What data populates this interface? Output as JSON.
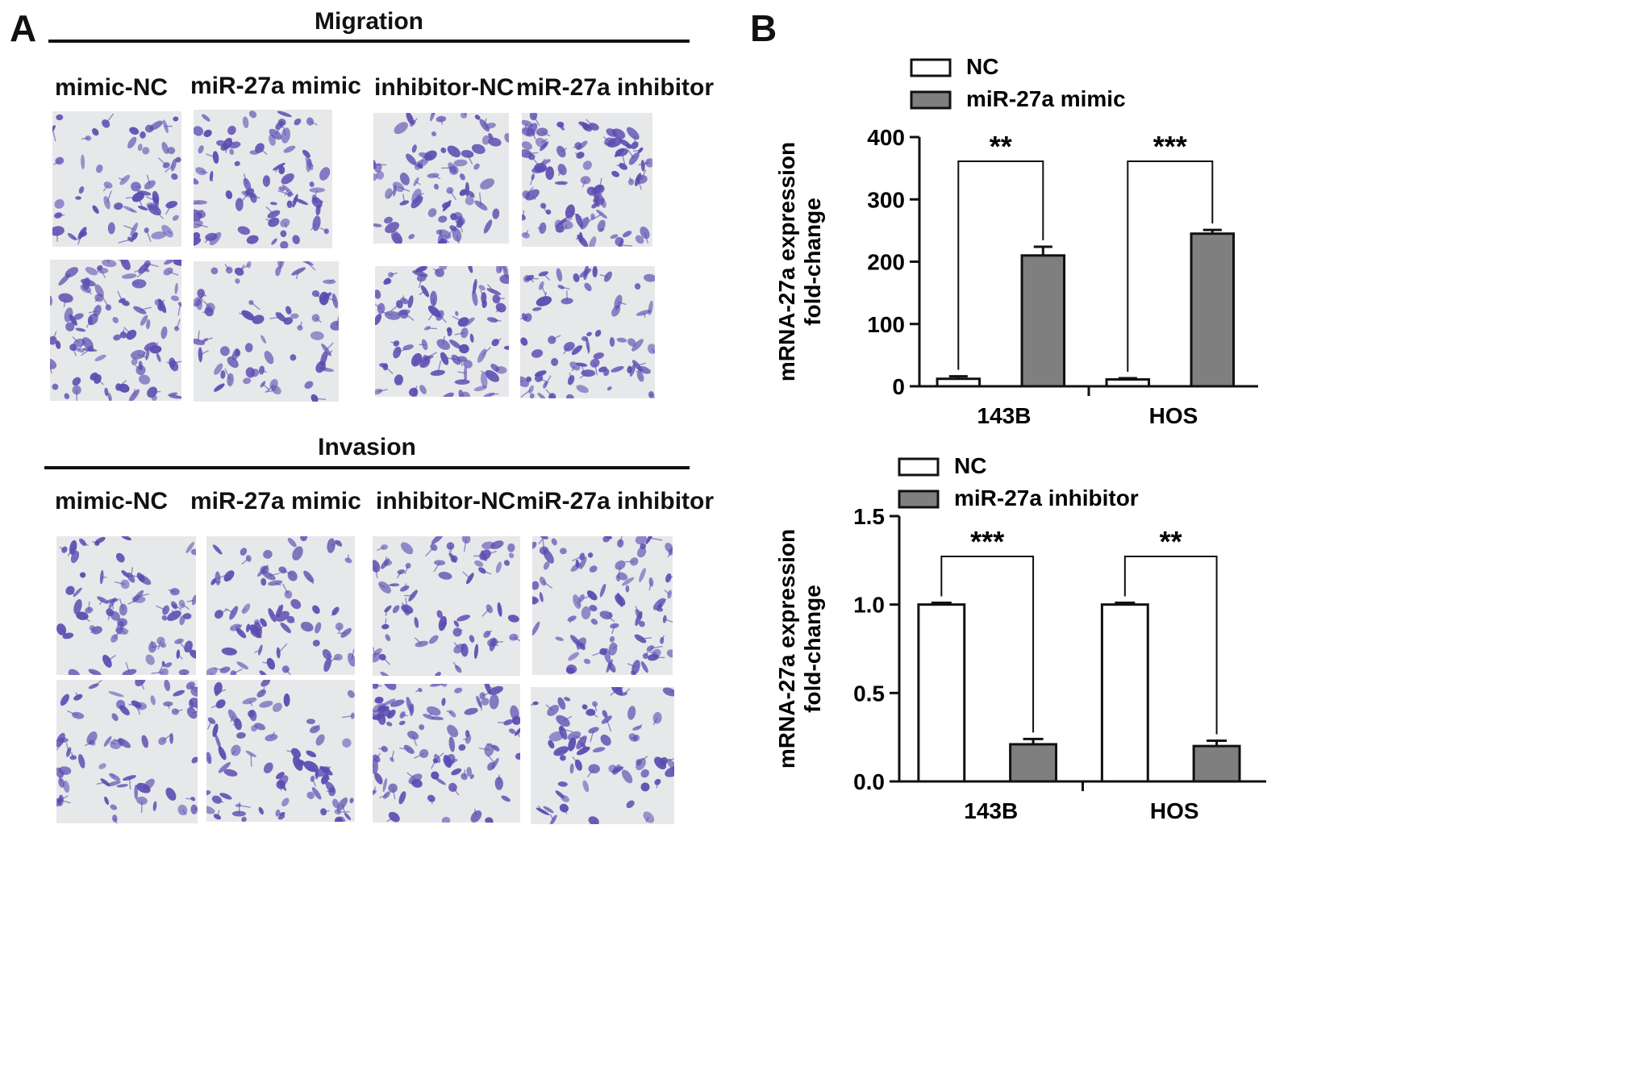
{
  "panel_a": {
    "letter": "A",
    "migration": {
      "title": "Migration",
      "columns": [
        "mimic-NC",
        "miR-27a mimic",
        "inhibitor-NC",
        "miR-27a inhibitor"
      ]
    },
    "invasion": {
      "title": "Invasion",
      "columns": [
        "mimic-NC",
        "miR-27a mimic",
        "inhibitor-NC",
        "miR-27a inhibitor"
      ]
    },
    "image_colors": {
      "background": "#e6e8ea",
      "cell": "#5a4bb0"
    }
  },
  "panel_b": {
    "letter": "B"
  },
  "chart_data": [
    {
      "type": "bar",
      "title": "",
      "categories": [
        "143B",
        "HOS"
      ],
      "series": [
        {
          "name": "NC",
          "values": [
            12,
            11
          ],
          "errors": [
            4,
            2
          ],
          "color": "#ffffff"
        },
        {
          "name": "miR-27a mimic",
          "values": [
            210,
            245
          ],
          "errors": [
            14,
            6
          ],
          "color": "#7f7f7f"
        }
      ],
      "ylabel_line1": "mRNA-27a expression",
      "ylabel_line2": "fold-change",
      "yticks": [
        "0",
        "100",
        "200",
        "300",
        "400"
      ],
      "ylim": [
        0,
        400
      ],
      "significance": [
        "**",
        "***"
      ],
      "legend": "top-left"
    },
    {
      "type": "bar",
      "title": "",
      "categories": [
        "143B",
        "HOS"
      ],
      "series": [
        {
          "name": "NC",
          "values": [
            1.0,
            1.0
          ],
          "errors": [
            0.01,
            0.01
          ],
          "color": "#ffffff"
        },
        {
          "name": "miR-27a inhibitor",
          "values": [
            0.21,
            0.2
          ],
          "errors": [
            0.03,
            0.03
          ],
          "color": "#7f7f7f"
        }
      ],
      "ylabel_line1": "mRNA-27a expression",
      "ylabel_line2": "fold-change",
      "yticks": [
        "0.0",
        "0.5",
        "1.0",
        "1.5"
      ],
      "ylim": [
        0,
        1.5
      ],
      "significance": [
        "***",
        "**"
      ],
      "legend": "top-left"
    }
  ]
}
